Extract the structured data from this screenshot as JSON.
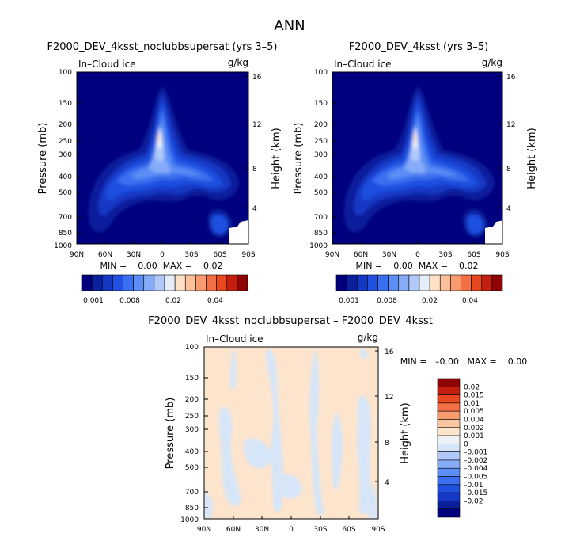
{
  "figure_title": "ANN",
  "colors": {
    "levels_abs": [
      "#00007f",
      "#0a1f9c",
      "#1437c4",
      "#1f50e0",
      "#3a6ff0",
      "#5c8ef5",
      "#86acf7",
      "#b0c9f8",
      "#e5eef8",
      "#fde0c5",
      "#fbbf9a",
      "#f89b6e",
      "#f47044",
      "#e8471f",
      "#c41f0e",
      "#8e0303"
    ],
    "levels_diff": [
      "#00007f",
      "#0a1f9c",
      "#1437c4",
      "#1f50e0",
      "#3a6ff0",
      "#5c8ef5",
      "#86acf7",
      "#b0c9f8",
      "#d6e6f8",
      "#eef2f6",
      "#fde4cd",
      "#fbc6a0",
      "#f89b6e",
      "#f47044",
      "#e8471f",
      "#c41f0e",
      "#8e0303"
    ]
  },
  "chart_data": [
    {
      "type": "heatmap",
      "title": "F2000_DEV_4ksst_noclubbsupersat (yrs 3–5)",
      "variable_label": "In–Cloud ice",
      "units_label": "g/kg",
      "ylabel": "Pressure (mb)",
      "ylabel_right": "Height (km)",
      "x_ticks": [
        "90N",
        "60N",
        "30N",
        "0",
        "30S",
        "60S",
        "90S"
      ],
      "y_ticks": [
        "100",
        "150",
        "200",
        "250",
        "300",
        "400",
        "500",
        "700",
        "850",
        "1000"
      ],
      "y_ticks_right": [
        "16",
        "12",
        "8",
        "4"
      ],
      "min_max_label": "MIN =    0.00  MAX =    0.02",
      "colorbar_labels": [
        "0.001",
        "0.008",
        "0.02",
        "0.04"
      ]
    },
    {
      "type": "heatmap",
      "title": "F2000_DEV_4ksst (yrs 3–5)",
      "variable_label": "In–Cloud ice",
      "units_label": "g/kg",
      "ylabel": "Pressure (mb)",
      "ylabel_right": "Height (km)",
      "x_ticks": [
        "90N",
        "60N",
        "30N",
        "0",
        "30S",
        "60S",
        "90S"
      ],
      "y_ticks": [
        "100",
        "150",
        "200",
        "250",
        "300",
        "400",
        "500",
        "700",
        "850",
        "1000"
      ],
      "y_ticks_right": [
        "16",
        "12",
        "8",
        "4"
      ],
      "min_max_label": "MIN =    0.00  MAX =    0.02",
      "colorbar_labels": [
        "0.001",
        "0.008",
        "0.02",
        "0.04"
      ]
    },
    {
      "type": "heatmap",
      "title": "F2000_DEV_4ksst_noclubbsupersat – F2000_DEV_4ksst",
      "variable_label": "In–Cloud ice",
      "units_label": "g/kg",
      "ylabel": "Pressure (mb)",
      "ylabel_right": "Height (km)",
      "x_ticks": [
        "90N",
        "60N",
        "30N",
        "0",
        "30S",
        "60S",
        "90S"
      ],
      "y_ticks": [
        "100",
        "150",
        "200",
        "250",
        "300",
        "400",
        "500",
        "700",
        "850",
        "1000"
      ],
      "y_ticks_right": [
        "16",
        "12",
        "8",
        "4"
      ],
      "min_max_label": "MIN =   –0.00   MAX =    0.00",
      "colorbar_labels": [
        "0.02",
        "0.015",
        "0.01",
        "0.005",
        "0.004",
        "0.002",
        "0.001",
        "0",
        "–0.001",
        "–0.002",
        "–0.004",
        "–0.005",
        "–0.01",
        "–0.015",
        "–0.02"
      ]
    }
  ]
}
